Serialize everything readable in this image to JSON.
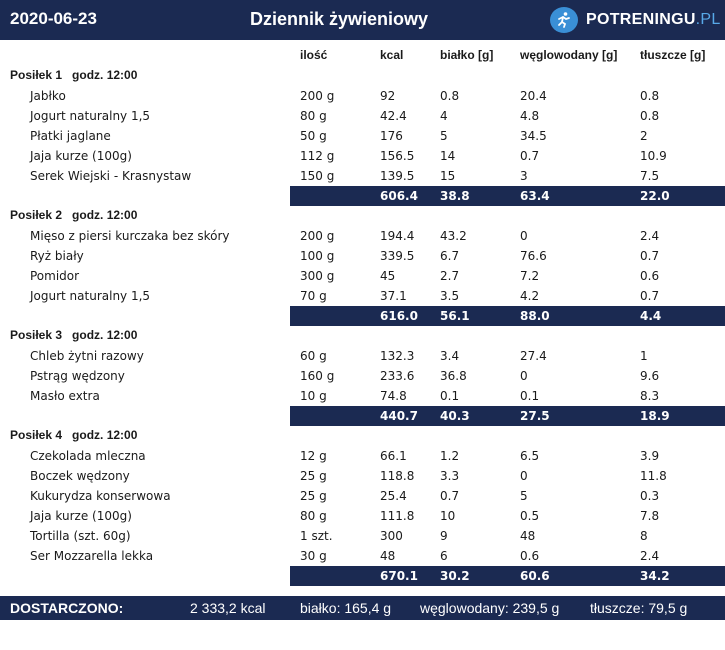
{
  "header": {
    "date": "2020-06-23",
    "title": "Dziennik żywieniowy",
    "logo_main": "POTRENINGU",
    "logo_tld": ".PL"
  },
  "columns": {
    "amount": "ilość",
    "kcal": "kcal",
    "protein": "białko [g]",
    "carbs": "węglowodany [g]",
    "fat": "tłuszcze [g]"
  },
  "meals": [
    {
      "name": "Posiłek 1",
      "time": "godz. 12:00",
      "items": [
        {
          "name": "Jabłko",
          "amount": "200 g",
          "kcal": "92",
          "protein": "0.8",
          "carbs": "20.4",
          "fat": "0.8"
        },
        {
          "name": "Jogurt naturalny 1,5",
          "amount": "80 g",
          "kcal": "42.4",
          "protein": "4",
          "carbs": "4.8",
          "fat": "0.8"
        },
        {
          "name": "Płatki jaglane",
          "amount": "50 g",
          "kcal": "176",
          "protein": "5",
          "carbs": "34.5",
          "fat": "2"
        },
        {
          "name": "Jaja kurze (100g)",
          "amount": "112 g",
          "kcal": "156.5",
          "protein": "14",
          "carbs": "0.7",
          "fat": "10.9"
        },
        {
          "name": "Serek Wiejski - Krasnystaw",
          "amount": "150 g",
          "kcal": "139.5",
          "protein": "15",
          "carbs": "3",
          "fat": "7.5"
        }
      ],
      "total": {
        "kcal": "606.4",
        "protein": "38.8",
        "carbs": "63.4",
        "fat": "22.0"
      }
    },
    {
      "name": "Posiłek 2",
      "time": "godz. 12:00",
      "items": [
        {
          "name": "Mięso z piersi kurczaka bez skóry",
          "amount": "200 g",
          "kcal": "194.4",
          "protein": "43.2",
          "carbs": "0",
          "fat": "2.4"
        },
        {
          "name": "Ryż biały",
          "amount": "100 g",
          "kcal": "339.5",
          "protein": "6.7",
          "carbs": "76.6",
          "fat": "0.7"
        },
        {
          "name": "Pomidor",
          "amount": "300 g",
          "kcal": "45",
          "protein": "2.7",
          "carbs": "7.2",
          "fat": "0.6"
        },
        {
          "name": "Jogurt naturalny 1,5",
          "amount": "70 g",
          "kcal": "37.1",
          "protein": "3.5",
          "carbs": "4.2",
          "fat": "0.7"
        }
      ],
      "total": {
        "kcal": "616.0",
        "protein": "56.1",
        "carbs": "88.0",
        "fat": "4.4"
      }
    },
    {
      "name": "Posiłek 3",
      "time": "godz. 12:00",
      "items": [
        {
          "name": "Chleb żytni razowy",
          "amount": "60 g",
          "kcal": "132.3",
          "protein": "3.4",
          "carbs": "27.4",
          "fat": "1"
        },
        {
          "name": "Pstrąg wędzony",
          "amount": "160 g",
          "kcal": "233.6",
          "protein": "36.8",
          "carbs": "0",
          "fat": "9.6"
        },
        {
          "name": "Masło extra",
          "amount": "10 g",
          "kcal": "74.8",
          "protein": "0.1",
          "carbs": "0.1",
          "fat": "8.3"
        }
      ],
      "total": {
        "kcal": "440.7",
        "protein": "40.3",
        "carbs": "27.5",
        "fat": "18.9"
      }
    },
    {
      "name": "Posiłek 4",
      "time": "godz. 12:00",
      "items": [
        {
          "name": "Czekolada mleczna",
          "amount": "12 g",
          "kcal": "66.1",
          "protein": "1.2",
          "carbs": "6.5",
          "fat": "3.9"
        },
        {
          "name": "Boczek wędzony",
          "amount": "25 g",
          "kcal": "118.8",
          "protein": "3.3",
          "carbs": "0",
          "fat": "11.8"
        },
        {
          "name": "Kukurydza konserwowa",
          "amount": "25 g",
          "kcal": "25.4",
          "protein": "0.7",
          "carbs": "5",
          "fat": "0.3"
        },
        {
          "name": "Jaja kurze (100g)",
          "amount": "80 g",
          "kcal": "111.8",
          "protein": "10",
          "carbs": "0.5",
          "fat": "7.8"
        },
        {
          "name": "Tortilla (szt. 60g)",
          "amount": "1 szt.",
          "kcal": "300",
          "protein": "9",
          "carbs": "48",
          "fat": "8"
        },
        {
          "name": "Ser Mozzarella lekka",
          "amount": "30 g",
          "kcal": "48",
          "protein": "6",
          "carbs": "0.6",
          "fat": "2.4"
        }
      ],
      "total": {
        "kcal": "670.1",
        "protein": "30.2",
        "carbs": "60.6",
        "fat": "34.2"
      }
    }
  ],
  "summary": {
    "label": "DOSTARCZONO:",
    "kcal": "2 333,2 kcal",
    "protein": "białko: 165,4 g",
    "carbs": "węglowodany: 239,5 g",
    "fat": "tłuszcze: 79,5 g"
  }
}
